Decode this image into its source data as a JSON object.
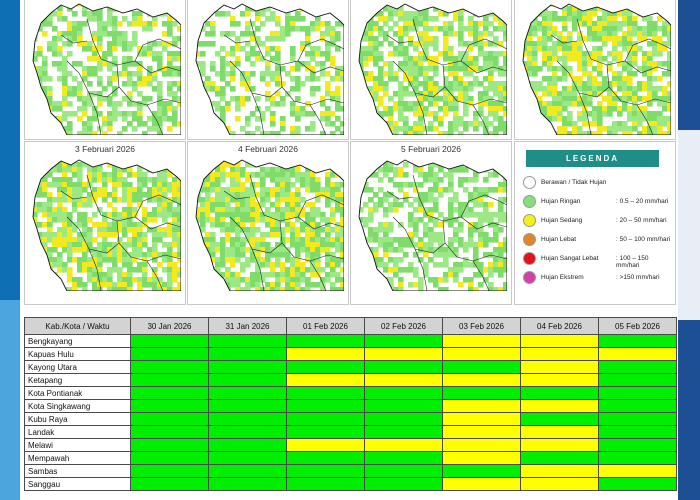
{
  "maps": [
    {
      "date": ""
    },
    {
      "date": ""
    },
    {
      "date": ""
    },
    {
      "date": ""
    },
    {
      "date": "3 Februari 2026"
    },
    {
      "date": "4 Februari 2026"
    },
    {
      "date": "5 Februari 2026"
    }
  ],
  "legend": {
    "title": "LEGENDA",
    "items": [
      {
        "label": "Berawan / Tidak Hujan",
        "range": "",
        "color": "#ffffff"
      },
      {
        "label": "Hujan Ringan",
        "range": ": 0.5 – 20 mm/hari",
        "color": "#86e07a"
      },
      {
        "label": "Hujan Sedang",
        "range": ": 20 – 50 mm/hari",
        "color": "#f5ef1a"
      },
      {
        "label": "Hujan Lebat",
        "range": ": 50 – 100 mm/hari",
        "color": "#e2862a"
      },
      {
        "label": "Hujan Sangat Lebat",
        "range": ": 100 – 150 mm/hari",
        "color": "#e0141c"
      },
      {
        "label": "Hujan Ekstrem",
        "range": ": >150 mm/hari",
        "color": "#d43fa8"
      }
    ]
  },
  "table": {
    "header": [
      "Kab./Kota / Waktu",
      "30 Jan 2026",
      "31 Jan 2026",
      "01 Feb 2026",
      "02 Feb 2026",
      "03 Feb 2026",
      "04 Feb 2026",
      "05 Feb 2026"
    ],
    "rows": [
      {
        "name": "Bengkayang",
        "cells": [
          "g",
          "g",
          "g",
          "g",
          "y",
          "y",
          "g"
        ]
      },
      {
        "name": "Kapuas Hulu",
        "cells": [
          "g",
          "g",
          "y",
          "y",
          "y",
          "y",
          "y"
        ]
      },
      {
        "name": "Kayong Utara",
        "cells": [
          "g",
          "g",
          "g",
          "g",
          "g",
          "y",
          "g"
        ]
      },
      {
        "name": "Ketapang",
        "cells": [
          "g",
          "g",
          "y",
          "y",
          "y",
          "y",
          "g"
        ]
      },
      {
        "name": "Kota Pontianak",
        "cells": [
          "g",
          "g",
          "g",
          "g",
          "g",
          "g",
          "g"
        ]
      },
      {
        "name": "Kota Singkawang",
        "cells": [
          "g",
          "g",
          "g",
          "g",
          "y",
          "y",
          "g"
        ]
      },
      {
        "name": "Kubu Raya",
        "cells": [
          "g",
          "g",
          "g",
          "g",
          "y",
          "g",
          "g"
        ]
      },
      {
        "name": "Landak",
        "cells": [
          "g",
          "g",
          "g",
          "g",
          "y",
          "y",
          "g"
        ]
      },
      {
        "name": "Melawi",
        "cells": [
          "g",
          "g",
          "y",
          "y",
          "y",
          "y",
          "g"
        ]
      },
      {
        "name": "Mempawah",
        "cells": [
          "g",
          "g",
          "g",
          "g",
          "y",
          "g",
          "g"
        ]
      },
      {
        "name": "Sambas",
        "cells": [
          "g",
          "g",
          "g",
          "g",
          "g",
          "y",
          "y"
        ]
      },
      {
        "name": "Sanggau",
        "cells": [
          "g",
          "g",
          "g",
          "g",
          "y",
          "y",
          "g"
        ]
      }
    ],
    "colors": {
      "g": "#00ee00",
      "y": "#ffff00"
    }
  }
}
